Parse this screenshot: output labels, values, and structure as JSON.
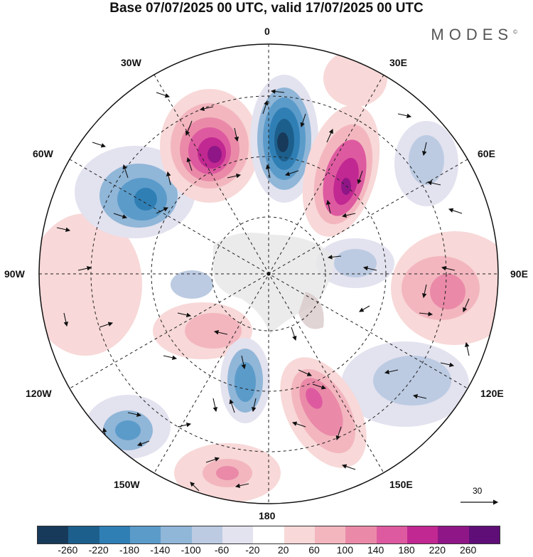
{
  "title": "Base 07/07/2025 00 UTC, valid 17/07/2025 00 UTC",
  "logo": "MODES",
  "logo_mark": "©",
  "longitude_labels": {
    "top": "0",
    "e30": "30E",
    "e60": "60E",
    "e90": "90E",
    "e120": "120E",
    "e150": "150E",
    "bottom": "180",
    "w150": "150W",
    "w120": "120W",
    "w90": "90W",
    "w60": "60W",
    "w30": "30W"
  },
  "reference_vector": "30",
  "colorbar": {
    "colors": [
      "#183a5a",
      "#1d5f8c",
      "#2f7fb5",
      "#5b9bca",
      "#90b6d8",
      "#bccbe2",
      "#e3e2ef",
      "#ffffff",
      "#f8d8d8",
      "#f3b6bf",
      "#ea8aa8",
      "#de5aa0",
      "#c12891",
      "#8f1686",
      "#5f0e78"
    ],
    "ticks": [
      "-260",
      "-220",
      "-180",
      "-140",
      "-100",
      "-60",
      "-20",
      "20",
      "60",
      "100",
      "140",
      "180",
      "220",
      "260"
    ]
  }
}
